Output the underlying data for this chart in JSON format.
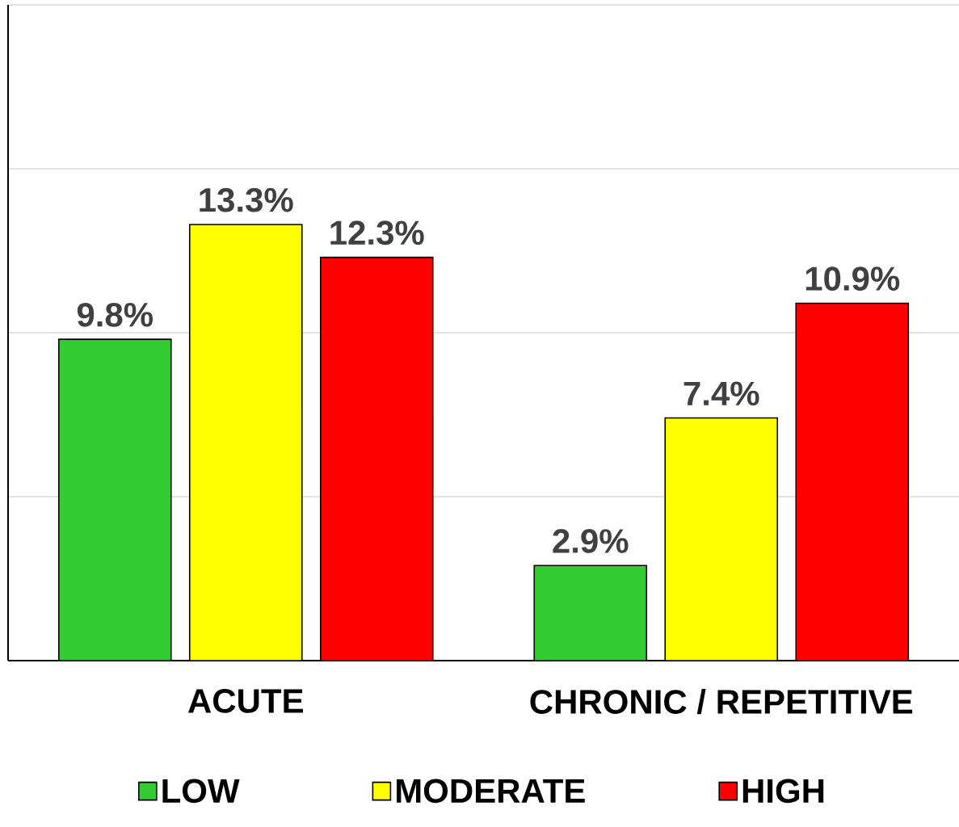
{
  "chart_data": {
    "type": "bar",
    "categories": [
      "ACUTE",
      "CHRONIC / REPETITIVE"
    ],
    "series": [
      {
        "name": "LOW",
        "color": "#33cc33",
        "values": [
          9.8,
          2.9
        ],
        "value_labels": [
          "9.8%",
          "2.9%"
        ]
      },
      {
        "name": "MODERATE",
        "color": "#ffff00",
        "values": [
          13.3,
          7.4
        ],
        "value_labels": [
          "13.3%",
          "7.4%"
        ]
      },
      {
        "name": "HIGH",
        "color": "#ff0000",
        "values": [
          12.3,
          10.9
        ],
        "value_labels": [
          "12.3%",
          "10.9%"
        ]
      }
    ],
    "ylim": [
      0,
      20
    ],
    "yticks": [
      {
        "value": 0,
        "label": null
      },
      {
        "value": 5,
        "label": null
      },
      {
        "value": 10,
        "label": null
      },
      {
        "value": 15,
        "label": null
      },
      {
        "value": 20,
        "label": null
      }
    ],
    "grid": "y",
    "legend": "bottom",
    "tick_labels": "x"
  }
}
